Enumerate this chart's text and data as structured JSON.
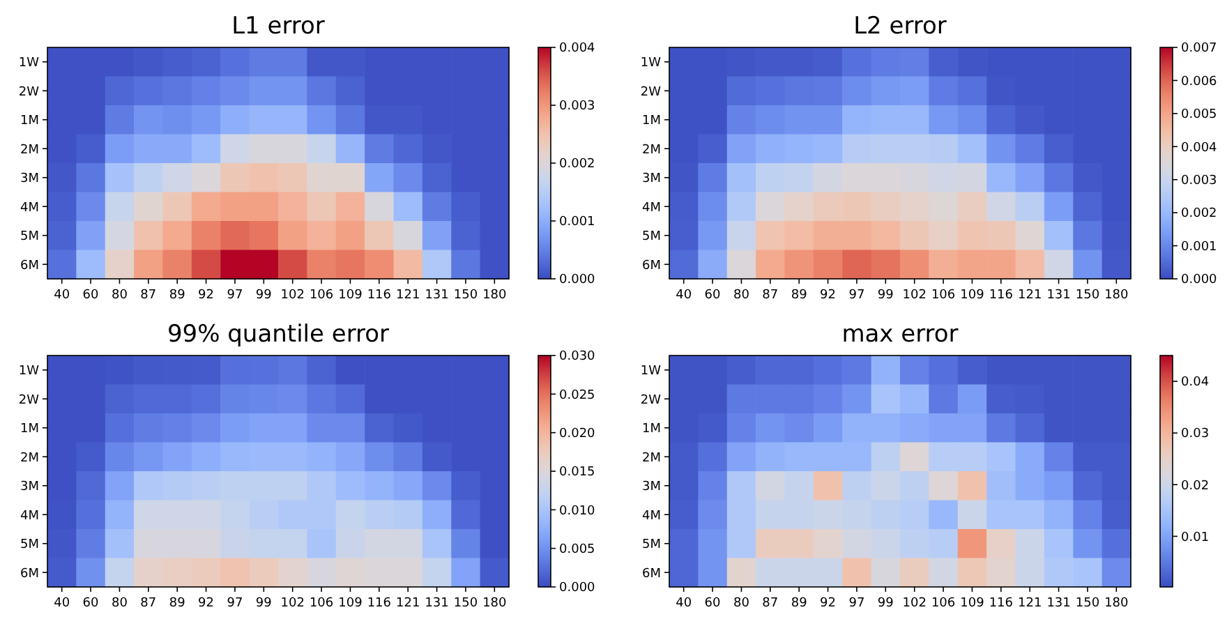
{
  "chart_data": [
    {
      "type": "heatmap",
      "title": "L1 error",
      "categories": [
        "40",
        "60",
        "80",
        "87",
        "89",
        "92",
        "97",
        "99",
        "102",
        "106",
        "109",
        "116",
        "121",
        "131",
        "150",
        "180"
      ],
      "y_categories": [
        "1W",
        "2W",
        "1M",
        "2M",
        "3M",
        "4M",
        "5M",
        "6M"
      ],
      "cells": [
        [
          5e-05,
          5e-05,
          5e-05,
          0.0001,
          0.00015,
          0.0002,
          0.00035,
          0.00045,
          0.00045,
          0.0001,
          0.0001,
          5e-05,
          5e-05,
          5e-05,
          5e-05,
          5e-05
        ],
        [
          5e-05,
          5e-05,
          0.00025,
          0.00035,
          0.0004,
          0.0005,
          0.0006,
          0.0007,
          0.0007,
          0.0004,
          0.0002,
          5e-05,
          5e-05,
          5e-05,
          5e-05,
          5e-05
        ],
        [
          5e-05,
          5e-05,
          0.00045,
          0.0007,
          0.00065,
          0.00075,
          0.001,
          0.0011,
          0.0011,
          0.0007,
          0.0004,
          0.0001,
          0.0001,
          5e-05,
          5e-05,
          5e-05
        ],
        [
          5e-05,
          0.00015,
          0.0008,
          0.00095,
          0.00095,
          0.0012,
          0.0018,
          0.00195,
          0.00195,
          0.0017,
          0.0011,
          0.00045,
          0.00025,
          0.0001,
          5e-05,
          5e-05
        ],
        [
          0.0001,
          0.0004,
          0.0013,
          0.0016,
          0.0018,
          0.002,
          0.0024,
          0.0025,
          0.0024,
          0.0021,
          0.0021,
          0.0009,
          0.0006,
          0.0002,
          5e-05,
          5e-05
        ],
        [
          0.00015,
          0.0006,
          0.0017,
          0.0021,
          0.0024,
          0.0028,
          0.0029,
          0.0029,
          0.0027,
          0.0024,
          0.0027,
          0.00195,
          0.0012,
          0.00045,
          0.00015,
          5e-05
        ],
        [
          0.0002,
          0.00085,
          0.0019,
          0.0025,
          0.0028,
          0.0032,
          0.0034,
          0.0033,
          0.0029,
          0.0027,
          0.0029,
          0.0024,
          0.00195,
          0.00085,
          0.0002,
          5e-05
        ],
        [
          0.00035,
          0.0012,
          0.0022,
          0.0029,
          0.0032,
          0.0036,
          0.004,
          0.004,
          0.0036,
          0.0032,
          0.0033,
          0.0031,
          0.0026,
          0.0014,
          0.0004,
          5e-05
        ]
      ],
      "clim": [
        0,
        0.004
      ],
      "cticks": [
        {
          "value": 0,
          "label": "0.000"
        },
        {
          "value": 0.001,
          "label": "0.001"
        },
        {
          "value": 0.002,
          "label": "0.002"
        },
        {
          "value": 0.003,
          "label": "0.003"
        },
        {
          "value": 0.004,
          "label": "0.004"
        }
      ]
    },
    {
      "type": "heatmap",
      "title": "L2 error",
      "categories": [
        "40",
        "60",
        "80",
        "87",
        "89",
        "92",
        "97",
        "99",
        "102",
        "106",
        "109",
        "116",
        "121",
        "131",
        "150",
        "180"
      ],
      "y_categories": [
        "1W",
        "2W",
        "1M",
        "2M",
        "3M",
        "4M",
        "5M",
        "6M"
      ],
      "cells": [
        [
          0.0001,
          0.0001,
          0.00015,
          0.0002,
          0.0002,
          0.00025,
          0.0006,
          0.0008,
          0.00085,
          0.0003,
          0.00015,
          0.0001,
          0.0001,
          0.0001,
          0.0001,
          0.0001
        ],
        [
          0.0001,
          0.0001,
          0.0005,
          0.0006,
          0.0007,
          0.00075,
          0.0011,
          0.0013,
          0.0014,
          0.0008,
          0.0006,
          0.00015,
          0.0001,
          0.0001,
          0.0001,
          0.0001
        ],
        [
          0.0001,
          0.0001,
          0.0009,
          0.0011,
          0.0012,
          0.0012,
          0.0019,
          0.002,
          0.002,
          0.0013,
          0.0011,
          0.0004,
          0.0002,
          0.0001,
          0.0001,
          0.0001
        ],
        [
          0.0001,
          0.0003,
          0.0015,
          0.0018,
          0.0019,
          0.002,
          0.0026,
          0.0027,
          0.0027,
          0.0026,
          0.0022,
          0.0012,
          0.0008,
          0.0003,
          0.0001,
          0.0001
        ],
        [
          0.00015,
          0.0008,
          0.0022,
          0.0028,
          0.0029,
          0.0033,
          0.0035,
          0.0035,
          0.0034,
          0.0032,
          0.0033,
          0.002,
          0.0015,
          0.0007,
          0.0002,
          0.0001
        ],
        [
          0.00025,
          0.0011,
          0.0025,
          0.0035,
          0.0038,
          0.0041,
          0.0042,
          0.004,
          0.0038,
          0.0036,
          0.004,
          0.0032,
          0.0027,
          0.0014,
          0.0004,
          0.0001
        ],
        [
          0.0003,
          0.0013,
          0.003,
          0.0043,
          0.0045,
          0.0048,
          0.0048,
          0.0046,
          0.0042,
          0.0039,
          0.0043,
          0.0042,
          0.0036,
          0.0022,
          0.0007,
          0.00015
        ],
        [
          0.0005,
          0.0017,
          0.0035,
          0.0049,
          0.0053,
          0.0056,
          0.006,
          0.0058,
          0.0054,
          0.0048,
          0.005,
          0.005,
          0.0045,
          0.0032,
          0.0012,
          0.0002
        ]
      ],
      "clim": [
        0,
        0.007
      ],
      "cticks": [
        {
          "value": 0,
          "label": "0.000"
        },
        {
          "value": 0.001,
          "label": "0.001"
        },
        {
          "value": 0.002,
          "label": "0.002"
        },
        {
          "value": 0.003,
          "label": "0.003"
        },
        {
          "value": 0.004,
          "label": "0.004"
        },
        {
          "value": 0.005,
          "label": "0.005"
        },
        {
          "value": 0.006,
          "label": "0.006"
        },
        {
          "value": 0.007,
          "label": "0.007"
        }
      ]
    },
    {
      "type": "heatmap",
      "title": "99% quantile error",
      "categories": [
        "40",
        "60",
        "80",
        "87",
        "89",
        "92",
        "97",
        "99",
        "102",
        "106",
        "109",
        "116",
        "121",
        "131",
        "150",
        "180"
      ],
      "y_categories": [
        "1W",
        "2W",
        "1M",
        "2M",
        "3M",
        "4M",
        "5M",
        "6M"
      ],
      "cells": [
        [
          0.0003,
          0.0003,
          0.0005,
          0.0008,
          0.0009,
          0.001,
          0.0025,
          0.0026,
          0.003,
          0.0015,
          0.0003,
          0.0003,
          0.0003,
          0.0003,
          0.0003,
          0.0003
        ],
        [
          0.0003,
          0.0003,
          0.0015,
          0.002,
          0.002,
          0.0025,
          0.004,
          0.0042,
          0.0045,
          0.003,
          0.0022,
          0.0003,
          0.0003,
          0.0003,
          0.0003,
          0.0003
        ],
        [
          0.0003,
          0.0003,
          0.0025,
          0.0035,
          0.0038,
          0.0045,
          0.006,
          0.0065,
          0.0065,
          0.0045,
          0.0045,
          0.0015,
          0.0008,
          0.0003,
          0.0003,
          0.0003
        ],
        [
          0.0003,
          0.001,
          0.0042,
          0.0055,
          0.0065,
          0.0075,
          0.0085,
          0.0088,
          0.0088,
          0.008,
          0.007,
          0.0048,
          0.0035,
          0.0009,
          0.0003,
          0.0003
        ],
        [
          0.0003,
          0.002,
          0.0065,
          0.0105,
          0.011,
          0.0115,
          0.012,
          0.012,
          0.012,
          0.0105,
          0.009,
          0.008,
          0.007,
          0.0045,
          0.0012,
          0.0003
        ],
        [
          0.0005,
          0.0025,
          0.008,
          0.0135,
          0.0135,
          0.0135,
          0.0125,
          0.0115,
          0.0105,
          0.0105,
          0.0125,
          0.0115,
          0.011,
          0.0075,
          0.002,
          0.0003
        ],
        [
          0.0007,
          0.0035,
          0.0095,
          0.0145,
          0.0145,
          0.0145,
          0.013,
          0.0125,
          0.0125,
          0.01,
          0.013,
          0.014,
          0.014,
          0.01,
          0.004,
          0.0003
        ],
        [
          0.001,
          0.005,
          0.0125,
          0.0165,
          0.017,
          0.0175,
          0.0185,
          0.0175,
          0.016,
          0.0145,
          0.0155,
          0.015,
          0.015,
          0.0125,
          0.0065,
          0.001
        ]
      ],
      "clim": [
        0,
        0.03
      ],
      "cticks": [
        {
          "value": 0,
          "label": "0.000"
        },
        {
          "value": 0.005,
          "label": "0.005"
        },
        {
          "value": 0.01,
          "label": "0.010"
        },
        {
          "value": 0.015,
          "label": "0.015"
        },
        {
          "value": 0.02,
          "label": "0.020"
        },
        {
          "value": 0.025,
          "label": "0.025"
        },
        {
          "value": 0.03,
          "label": "0.030"
        }
      ]
    },
    {
      "type": "heatmap",
      "title": "max error",
      "categories": [
        "40",
        "60",
        "80",
        "87",
        "89",
        "92",
        "97",
        "99",
        "102",
        "106",
        "109",
        "116",
        "121",
        "131",
        "150",
        "180"
      ],
      "y_categories": [
        "1W",
        "2W",
        "1M",
        "2M",
        "3M",
        "4M",
        "5M",
        "6M"
      ],
      "cells": [
        [
          0.001,
          0.001,
          0.002,
          0.003,
          0.003,
          0.004,
          0.005,
          0.012,
          0.006,
          0.004,
          0.002,
          0.001,
          0.001,
          0.001,
          0.001,
          0.001
        ],
        [
          0.001,
          0.001,
          0.005,
          0.005,
          0.005,
          0.006,
          0.008,
          0.015,
          0.013,
          0.005,
          0.009,
          0.002,
          0.0015,
          0.001,
          0.001,
          0.001
        ],
        [
          0.001,
          0.0015,
          0.006,
          0.008,
          0.007,
          0.009,
          0.012,
          0.012,
          0.011,
          0.01,
          0.01,
          0.005,
          0.003,
          0.001,
          0.001,
          0.001
        ],
        [
          0.0015,
          0.004,
          0.01,
          0.012,
          0.013,
          0.013,
          0.013,
          0.018,
          0.023,
          0.017,
          0.017,
          0.015,
          0.011,
          0.006,
          0.0015,
          0.0015
        ],
        [
          0.0015,
          0.006,
          0.016,
          0.021,
          0.019,
          0.028,
          0.018,
          0.02,
          0.018,
          0.023,
          0.028,
          0.014,
          0.011,
          0.009,
          0.003,
          0.0015
        ],
        [
          0.002,
          0.007,
          0.016,
          0.019,
          0.019,
          0.02,
          0.019,
          0.018,
          0.017,
          0.013,
          0.02,
          0.015,
          0.015,
          0.012,
          0.006,
          0.002
        ],
        [
          0.003,
          0.008,
          0.016,
          0.026,
          0.026,
          0.024,
          0.021,
          0.02,
          0.018,
          0.017,
          0.034,
          0.025,
          0.02,
          0.015,
          0.008,
          0.004
        ],
        [
          0.003,
          0.008,
          0.024,
          0.02,
          0.02,
          0.02,
          0.028,
          0.022,
          0.026,
          0.021,
          0.027,
          0.024,
          0.02,
          0.016,
          0.015,
          0.007
        ]
      ],
      "clim": [
        0.0002,
        0.045
      ],
      "cticks": [
        0.01,
        0.02,
        0.03,
        0.04
      ]
    }
  ]
}
